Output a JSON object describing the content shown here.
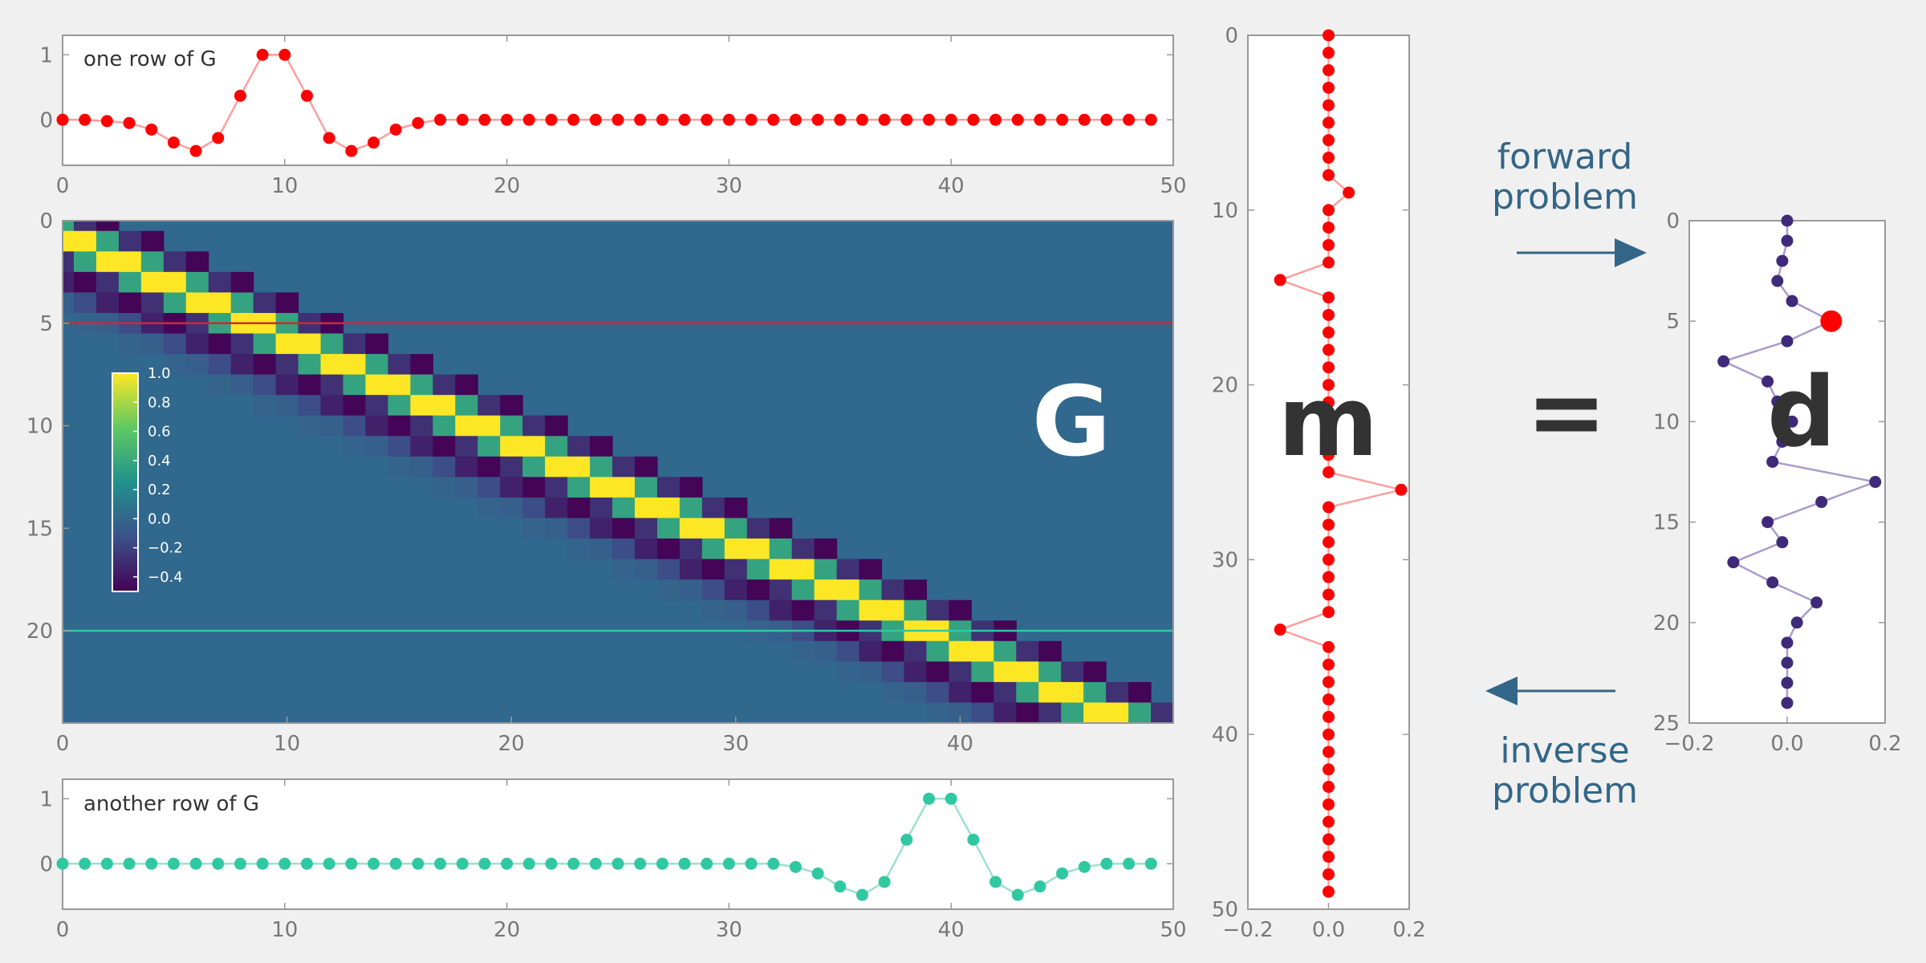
{
  "chart_data": [
    {
      "id": "row_top",
      "type": "line",
      "label": "one row of G",
      "color": "#ff0000",
      "line_color": "#ff9e9e",
      "xlim": [
        0,
        50
      ],
      "ylim": [
        -0.7,
        1.3
      ],
      "xticks": [
        "0",
        "10",
        "20",
        "30",
        "40",
        "50"
      ],
      "yticks": [
        "1",
        "0"
      ],
      "x": [
        0,
        1,
        2,
        3,
        4,
        5,
        6,
        7,
        8,
        9,
        10,
        11,
        12,
        13,
        14,
        15,
        16,
        17,
        18,
        19,
        20,
        21,
        22,
        23,
        24,
        25,
        26,
        27,
        28,
        29,
        30,
        31,
        32,
        33,
        34,
        35,
        36,
        37,
        38,
        39,
        40,
        41,
        42,
        43,
        44,
        45,
        46,
        47,
        48,
        49
      ],
      "values": [
        0,
        0,
        -0.02,
        -0.05,
        -0.15,
        -0.35,
        -0.48,
        -0.28,
        0.37,
        1.0,
        1.0,
        0.37,
        -0.28,
        -0.48,
        -0.35,
        -0.15,
        -0.05,
        0,
        0,
        0,
        0,
        0,
        0,
        0,
        0,
        0,
        0,
        0,
        0,
        0,
        0,
        0,
        0,
        0,
        0,
        0,
        0,
        0,
        0,
        0,
        0,
        0,
        0,
        0,
        0,
        0,
        0,
        0,
        0,
        0
      ]
    },
    {
      "id": "row_bottom",
      "type": "line",
      "label": "another row of G",
      "color": "#30c8a0",
      "line_color": "#9ee0cc",
      "xlim": [
        0,
        50
      ],
      "ylim": [
        -0.7,
        1.3
      ],
      "xticks": [
        "0",
        "10",
        "20",
        "30",
        "40",
        "50"
      ],
      "yticks": [
        "1",
        "0"
      ],
      "x": [
        0,
        1,
        2,
        3,
        4,
        5,
        6,
        7,
        8,
        9,
        10,
        11,
        12,
        13,
        14,
        15,
        16,
        17,
        18,
        19,
        20,
        21,
        22,
        23,
        24,
        25,
        26,
        27,
        28,
        29,
        30,
        31,
        32,
        33,
        34,
        35,
        36,
        37,
        38,
        39,
        40,
        41,
        42,
        43,
        44,
        45,
        46,
        47,
        48,
        49
      ],
      "values": [
        0,
        0,
        0,
        0,
        0,
        0,
        0,
        0,
        0,
        0,
        0,
        0,
        0,
        0,
        0,
        0,
        0,
        0,
        0,
        0,
        0,
        0,
        0,
        0,
        0,
        0,
        0,
        0,
        0,
        0,
        0,
        0,
        0,
        -0.05,
        -0.15,
        -0.35,
        -0.48,
        -0.28,
        0.37,
        1.0,
        1.0,
        0.37,
        -0.28,
        -0.48,
        -0.35,
        -0.15,
        -0.05,
        0,
        0,
        0
      ]
    },
    {
      "id": "matrix",
      "type": "heatmap",
      "label": "G",
      "rows": 25,
      "cols": 50,
      "kernel_offsets": [
        -9,
        -8,
        -7,
        -6,
        -5,
        -4,
        -3,
        -2,
        -1,
        0,
        1,
        2
      ],
      "kernel_values": [
        -0.02,
        -0.05,
        -0.15,
        -0.35,
        -0.48,
        -0.28,
        0.37,
        1.0,
        1.0,
        0.37,
        -0.28,
        -0.48
      ],
      "row_shift": 2,
      "colormap": [
        "#440154",
        "#3b528b",
        "#21918c",
        "#5ec962",
        "#fde725"
      ],
      "background": "#31688e",
      "vmin": -0.5,
      "vmax": 1.0,
      "xticks": [
        "0",
        "10",
        "20",
        "30",
        "40"
      ],
      "yticks": [
        "0",
        "5",
        "10",
        "15",
        "20"
      ],
      "highlight_rows": [
        {
          "row": 5,
          "color": "#d62728"
        },
        {
          "row": 20,
          "color": "#30c8a0"
        }
      ],
      "colorbar": {
        "ticks": [
          "1.0",
          "0.8",
          "0.6",
          "0.4",
          "0.2",
          "0.0",
          "−0.2",
          "−0.4"
        ],
        "values": [
          1.0,
          0.8,
          0.6,
          0.4,
          0.2,
          0.0,
          -0.2,
          -0.4
        ]
      }
    },
    {
      "id": "m",
      "type": "scatter",
      "label": "m",
      "orientation": "vertical",
      "color": "#ff0000",
      "line_color": "#ff9e9e",
      "xlim": [
        -0.2,
        0.2
      ],
      "ylim": [
        0,
        50
      ],
      "xticks": [
        "−0.2",
        "0.0",
        "0.2"
      ],
      "yticks": [
        "0",
        "10",
        "20",
        "30",
        "40",
        "50"
      ],
      "y": [
        0,
        1,
        2,
        3,
        4,
        5,
        6,
        7,
        8,
        9,
        10,
        11,
        12,
        13,
        14,
        15,
        16,
        17,
        18,
        19,
        20,
        21,
        22,
        23,
        24,
        25,
        26,
        27,
        28,
        29,
        30,
        31,
        32,
        33,
        34,
        35,
        36,
        37,
        38,
        39,
        40,
        41,
        42,
        43,
        44,
        45,
        46,
        47,
        48,
        49
      ],
      "values": [
        0,
        0,
        0,
        0,
        0,
        0,
        0,
        0,
        0,
        0.05,
        0,
        0,
        0,
        0,
        -0.12,
        0,
        0,
        0,
        0,
        0,
        0,
        0,
        0,
        0,
        0,
        0,
        0.18,
        0,
        0,
        0,
        0,
        0,
        0,
        0,
        -0.12,
        0,
        0,
        0,
        0,
        0,
        0,
        0,
        0,
        0,
        0,
        0,
        0,
        0,
        0,
        0
      ]
    },
    {
      "id": "d",
      "type": "scatter",
      "label": "d",
      "orientation": "vertical",
      "color": "#3f2a7a",
      "line_color": "#a99ccc",
      "highlight": {
        "index": 5,
        "color": "#ff0000"
      },
      "xlim": [
        -0.2,
        0.2
      ],
      "ylim": [
        0,
        25
      ],
      "xticks": [
        "−0.2",
        "0.0",
        "0.2"
      ],
      "yticks": [
        "0",
        "5",
        "10",
        "15",
        "20",
        "25"
      ],
      "y": [
        0,
        1,
        2,
        3,
        4,
        5,
        6,
        7,
        8,
        9,
        10,
        11,
        12,
        13,
        14,
        15,
        16,
        17,
        18,
        19,
        20,
        21,
        22,
        23,
        24
      ],
      "values": [
        0,
        0,
        -0.01,
        -0.02,
        0.01,
        0.09,
        0,
        -0.13,
        -0.04,
        -0.02,
        0.01,
        -0.01,
        -0.03,
        0.18,
        0.07,
        -0.04,
        -0.01,
        -0.11,
        -0.03,
        0.06,
        0.02,
        0,
        0,
        0,
        0
      ]
    }
  ],
  "labels": {
    "equals": "=",
    "forward": [
      "forward",
      "problem"
    ],
    "inverse": [
      "inverse",
      "problem"
    ]
  },
  "colors": {
    "arrow": "#336688",
    "big_label": "#333333",
    "matrix_label": "#ffffff",
    "axes_frame": "#999999"
  }
}
